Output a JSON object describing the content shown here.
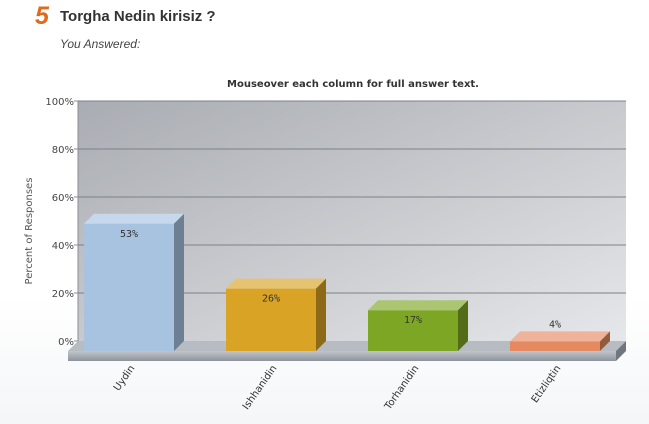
{
  "question": {
    "number": "5",
    "text": "Torgha Nedin kirisiz ?",
    "answered_label": "You Answered:"
  },
  "chart_hint": "Mouseover each column for full answer text.",
  "chart_data": {
    "type": "bar",
    "ylabel": "Percent of Responses",
    "ylim": [
      0,
      100
    ],
    "yticks": [
      "0%",
      "20%",
      "40%",
      "60%",
      "80%",
      "100%"
    ],
    "grid": true,
    "categories": [
      "Uydin",
      "Ishhanidin",
      "Torhanidin",
      "Etizliqtin"
    ],
    "values": [
      53,
      26,
      17,
      4
    ],
    "value_labels": [
      "53%",
      "26%",
      "17%",
      "4%"
    ],
    "colors": [
      "#a7c3e0",
      "#d9a325",
      "#7ea625",
      "#e58a60"
    ]
  }
}
